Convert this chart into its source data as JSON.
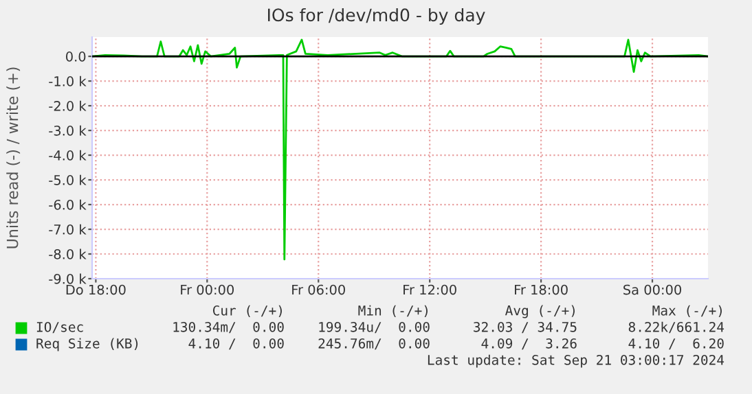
{
  "chart_data": {
    "type": "line",
    "title": "IOs for /dev/md0 - by day",
    "ylabel": "Units read (-) / write (+)",
    "x": [
      "2024-09-19T17:48",
      "2024-09-19T18:30",
      "2024-09-19T19:30",
      "2024-09-19T20:30",
      "2024-09-19T21:18",
      "2024-09-19T21:30",
      "2024-09-19T21:42",
      "2024-09-19T22:30",
      "2024-09-19T22:42",
      "2024-09-19T22:54",
      "2024-09-19T23:06",
      "2024-09-19T23:18",
      "2024-09-19T23:30",
      "2024-09-19T23:42",
      "2024-09-19T23:54",
      "2024-09-20T00:12",
      "2024-09-20T01:12",
      "2024-09-20T01:30",
      "2024-09-20T01:36",
      "2024-09-20T01:48",
      "2024-09-20T03:54",
      "2024-09-20T04:06",
      "2024-09-20T04:10",
      "2024-09-20T04:18",
      "2024-09-20T04:48",
      "2024-09-20T05:06",
      "2024-09-20T05:18",
      "2024-09-20T06:30",
      "2024-09-20T09:18",
      "2024-09-20T09:36",
      "2024-09-20T10:00",
      "2024-09-20T10:30",
      "2024-09-20T12:54",
      "2024-09-20T13:06",
      "2024-09-20T13:18",
      "2024-09-20T14:54",
      "2024-09-20T15:06",
      "2024-09-20T15:30",
      "2024-09-20T15:48",
      "2024-09-20T16:06",
      "2024-09-20T16:24",
      "2024-09-20T16:36",
      "2024-09-20T22:30",
      "2024-09-20T22:42",
      "2024-09-20T23:00",
      "2024-09-20T23:12",
      "2024-09-20T23:24",
      "2024-09-20T23:36",
      "2024-09-20T23:54",
      "2024-09-21T02:30",
      "2024-09-21T03:00"
    ],
    "series": [
      {
        "name": "IO/sec",
        "color": "#00cc00",
        "values": [
          0,
          50,
          30,
          0,
          0,
          600,
          0,
          0,
          250,
          50,
          400,
          -200,
          450,
          -300,
          200,
          0,
          100,
          350,
          -450,
          0,
          50,
          50,
          -8220,
          50,
          200,
          670,
          100,
          50,
          150,
          50,
          150,
          0,
          0,
          220,
          0,
          0,
          100,
          200,
          400,
          350,
          300,
          0,
          0,
          670,
          -630,
          250,
          -200,
          150,
          0,
          50,
          0
        ]
      },
      {
        "name": "Req Size (KB)",
        "color": "#0066b3",
        "values": [
          null,
          null,
          null,
          null,
          null,
          null,
          null,
          null,
          null,
          null,
          null,
          null,
          null,
          null,
          null,
          null,
          null,
          null,
          null,
          null,
          null,
          null,
          null,
          null,
          null,
          null,
          null,
          null,
          null,
          null,
          null,
          null,
          null,
          null,
          null,
          null,
          null,
          null,
          null,
          null,
          null,
          null,
          null,
          null,
          null,
          null,
          null,
          null,
          null,
          null,
          null
        ]
      }
    ],
    "xlim": [
      "2024-09-19T17:48",
      "2024-09-21T03:00"
    ],
    "xticks": [
      {
        "value": "2024-09-19T18:00",
        "label": "Do 18:00"
      },
      {
        "value": "2024-09-20T00:00",
        "label": "Fr 00:00"
      },
      {
        "value": "2024-09-20T06:00",
        "label": "Fr 06:00"
      },
      {
        "value": "2024-09-20T12:00",
        "label": "Fr 12:00"
      },
      {
        "value": "2024-09-20T18:00",
        "label": "Fr 18:00"
      },
      {
        "value": "2024-09-21T00:00",
        "label": "Sa 00:00"
      }
    ],
    "ylim": [
      -9000,
      780
    ],
    "yticks": [
      {
        "value": -9000,
        "label": "-9.0 k"
      },
      {
        "value": -8000,
        "label": "-8.0 k"
      },
      {
        "value": -7000,
        "label": "-7.0 k"
      },
      {
        "value": -6000,
        "label": "-6.0 k"
      },
      {
        "value": -5000,
        "label": "-5.0 k"
      },
      {
        "value": -4000,
        "label": "-4.0 k"
      },
      {
        "value": -3000,
        "label": "-3.0 k"
      },
      {
        "value": -2000,
        "label": "-2.0 k"
      },
      {
        "value": -1000,
        "label": "-1.0 k"
      },
      {
        "value": 0,
        "label": "0.0"
      }
    ],
    "ref_lines": [
      {
        "axis": "y",
        "value": 0,
        "color": "#000000"
      }
    ],
    "grid": true,
    "legend": "bottom left",
    "marker": "none",
    "line_style": "solid",
    "annotations": [
      "Cur (-/+)",
      "Min (-/+)",
      "Avg (-/+)",
      "Max (-/+)",
      "130.34m/  0.00",
      "199.34u/  0.00",
      "32.03 / 34.75",
      "8.22k/661.24",
      "  4.10 /  0.00",
      "245.76m/  0.00",
      " 4.09 /  3.26",
      " 4.10 /  6.20",
      "Last update: Sat Sep 21 03:00:17 2024"
    ]
  }
}
